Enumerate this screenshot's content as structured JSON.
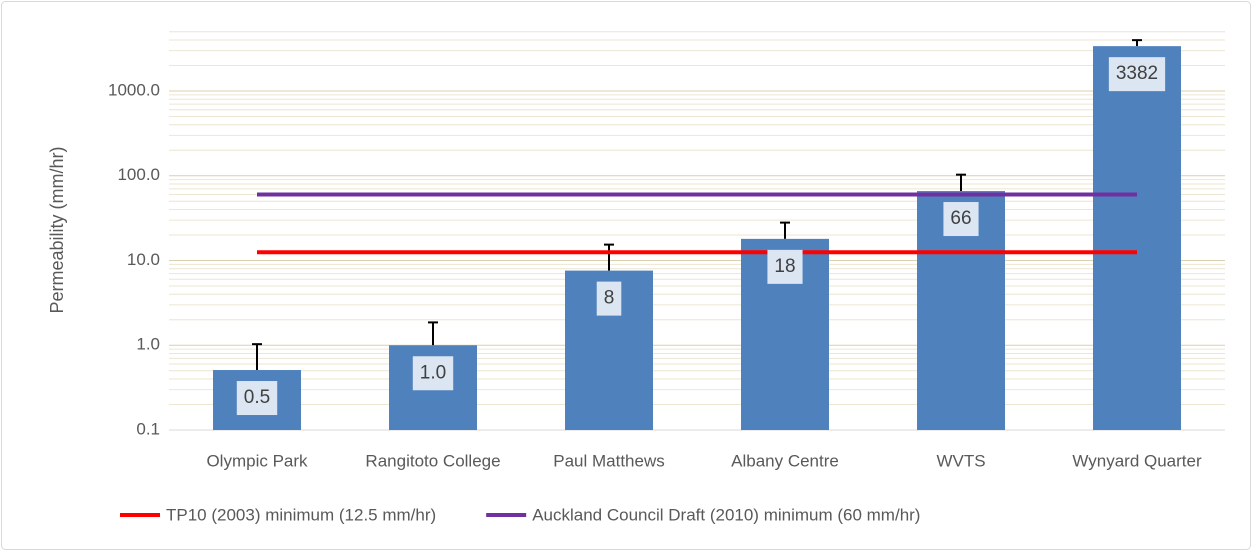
{
  "chart_data": {
    "type": "bar",
    "y_label": "Permeability (mm/hr)",
    "categories": [
      "Olympic Park",
      "Rangitoto College",
      "Paul Matthews",
      "Albany Centre",
      "WVTS",
      "Wynyard Quarter"
    ],
    "values": [
      0.51,
      1.0,
      7.6,
      18,
      66,
      3382
    ],
    "value_labels": [
      "0.5",
      "1.0",
      "8",
      "18",
      "66",
      "3382"
    ],
    "errors": [
      0.52,
      0.86,
      7.8,
      10,
      37,
      600
    ],
    "color": "#4f81bd",
    "log_scale": true,
    "ylim": [
      0.1,
      10000
    ],
    "yticks": [
      0.1,
      {
        "value": 1,
        "label": "1.0"
      },
      {
        "value": 10,
        "label": "10.0"
      },
      {
        "value": 100,
        "label": "100.0"
      },
      {
        "value": 1000,
        "label": "1000.0"
      }
    ],
    "grid": true,
    "reference_lines": [
      {
        "name": "TP10 (2003) minimum (12.5 mm/hr)",
        "value": 12.5,
        "color": "#ff0000"
      },
      {
        "name": "Auckland Council Draft (2010) minimum (60 mm/hr)",
        "value": 60,
        "color": "#7030a0"
      }
    ],
    "legend": "bottom"
  }
}
